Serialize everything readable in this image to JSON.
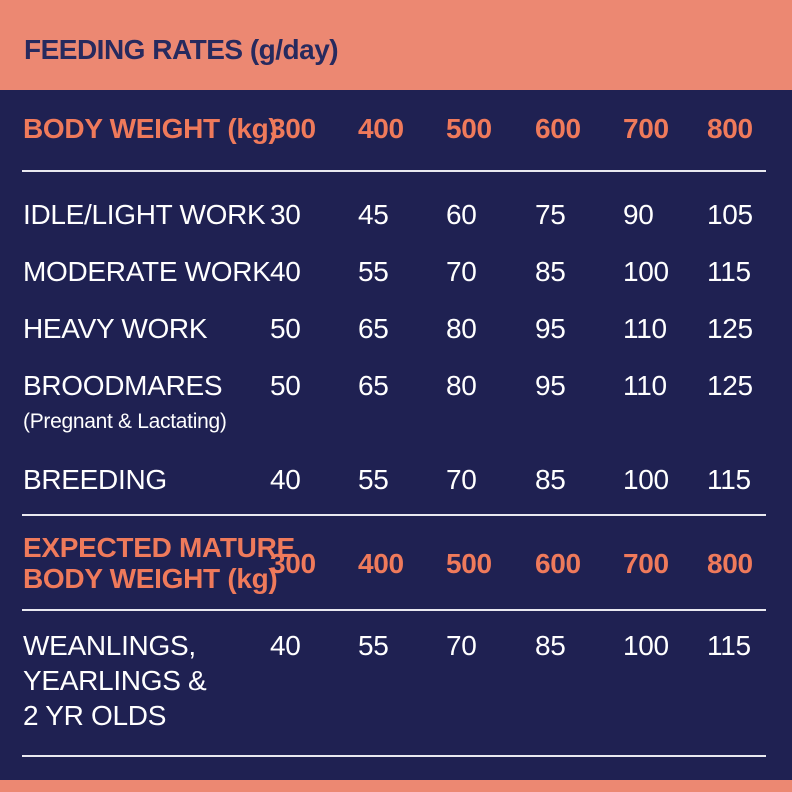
{
  "title": "FEEDING RATES (g/day)",
  "colors": {
    "accent": "#ec8872",
    "background": "#1f2152",
    "header_text": "#ef7a5b",
    "title_text": "#272a5e"
  },
  "header1": {
    "label": "BODY WEIGHT (kg)",
    "values": [
      "300",
      "400",
      "500",
      "600",
      "700",
      "800"
    ]
  },
  "rows": [
    {
      "label": "IDLE/LIGHT WORK",
      "values": [
        "30",
        "45",
        "60",
        "75",
        "90",
        "105"
      ]
    },
    {
      "label": "MODERATE WORK",
      "values": [
        "40",
        "55",
        "70",
        "85",
        "100",
        "115"
      ]
    },
    {
      "label": "HEAVY WORK",
      "values": [
        "50",
        "65",
        "80",
        "95",
        "110",
        "125"
      ]
    },
    {
      "label": "BROODMARES",
      "sublabel": "(Pregnant & Lactating)",
      "values": [
        "50",
        "65",
        "80",
        "95",
        "110",
        "125"
      ]
    },
    {
      "label": "BREEDING",
      "values": [
        "40",
        "55",
        "70",
        "85",
        "100",
        "115"
      ]
    }
  ],
  "header2": {
    "label_line1": "EXPECTED MATURE",
    "label_line2": "BODY WEIGHT (kg)",
    "values": [
      "300",
      "400",
      "500",
      "600",
      "700",
      "800"
    ]
  },
  "youngstock": {
    "label_line1": "WEANLINGS,",
    "label_line2": "YEARLINGS &",
    "label_line3": "2 YR OLDS",
    "values": [
      "40",
      "55",
      "70",
      "85",
      "100",
      "115"
    ]
  }
}
